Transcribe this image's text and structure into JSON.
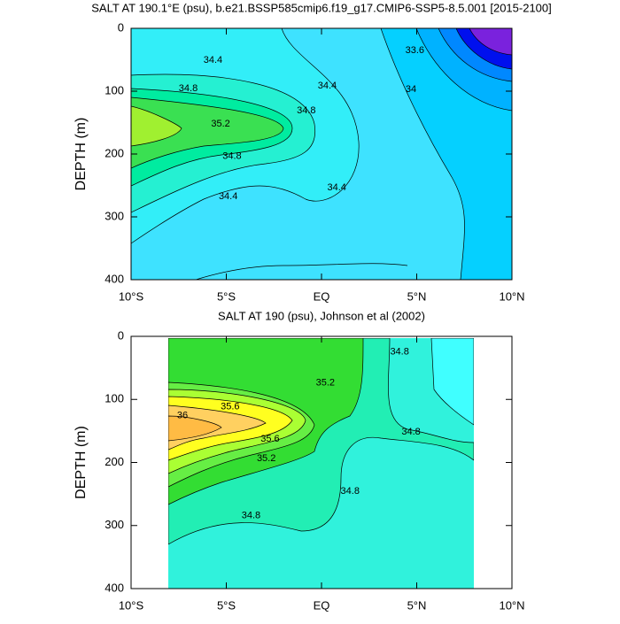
{
  "chart_data": [
    {
      "type": "contour",
      "title": "SALT AT 190.1°E (psu), b.e21.BSSP585cmip6.f19_g17.CMIP6-SSP5-8.5.001 [2015-2100]",
      "ylabel": "DEPTH (m)",
      "xlim": [
        -10,
        10
      ],
      "ylim": [
        0,
        400
      ],
      "y_inverted": true,
      "xticks": [
        {
          "value": -10,
          "label": "10°S"
        },
        {
          "value": -5,
          "label": "5°S"
        },
        {
          "value": 0,
          "label": "EQ"
        },
        {
          "value": 5,
          "label": "5°N"
        },
        {
          "value": 10,
          "label": "10°N"
        }
      ],
      "yticks": [
        0,
        100,
        200,
        300,
        400
      ],
      "contour_labels": [
        {
          "value": 34.4,
          "x": -5.7,
          "y": 51
        },
        {
          "value": 34.8,
          "x": -7.0,
          "y": 96
        },
        {
          "value": 35.2,
          "x": -5.3,
          "y": 152
        },
        {
          "value": 34.4,
          "x": 0.3,
          "y": 92
        },
        {
          "value": 34.8,
          "x": -0.8,
          "y": 131
        },
        {
          "value": 34.8,
          "x": -4.7,
          "y": 204
        },
        {
          "value": 34.4,
          "x": -4.9,
          "y": 268
        },
        {
          "value": 34.4,
          "x": 0.8,
          "y": 254
        },
        {
          "value": 33.6,
          "x": 4.9,
          "y": 35
        },
        {
          "value": 34,
          "x": 4.7,
          "y": 97
        }
      ]
    },
    {
      "type": "contour",
      "title": "SALT AT 190 (psu), Johnson et al (2002)",
      "ylabel": "DEPTH (m)",
      "xlim": [
        -10,
        10
      ],
      "ylim": [
        0,
        400
      ],
      "y_inverted": true,
      "xticks": [
        {
          "value": -10,
          "label": "10°S"
        },
        {
          "value": -5,
          "label": "5°S"
        },
        {
          "value": 0,
          "label": "EQ"
        },
        {
          "value": 5,
          "label": "5°N"
        },
        {
          "value": 10,
          "label": "10°N"
        }
      ],
      "yticks": [
        0,
        100,
        200,
        300,
        400
      ],
      "contour_labels": [
        {
          "value": 34.8,
          "x": 4.1,
          "y": 25
        },
        {
          "value": 35.2,
          "x": 0.2,
          "y": 74
        },
        {
          "value": 35.6,
          "x": -4.8,
          "y": 112
        },
        {
          "value": 36,
          "x": -7.3,
          "y": 126
        },
        {
          "value": 35.6,
          "x": -2.7,
          "y": 163
        },
        {
          "value": 35.2,
          "x": -2.9,
          "y": 194
        },
        {
          "value": 34.8,
          "x": 4.7,
          "y": 152
        },
        {
          "value": 34.8,
          "x": 1.5,
          "y": 246
        },
        {
          "value": 34.8,
          "x": -3.7,
          "y": 284
        }
      ]
    }
  ]
}
